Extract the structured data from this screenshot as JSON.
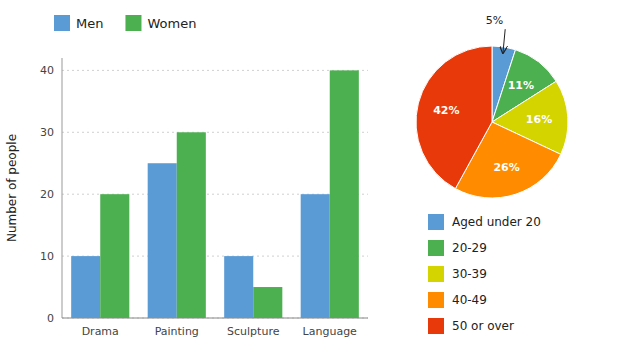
{
  "chart_data": [
    {
      "type": "bar",
      "categories": [
        "Drama",
        "Painting",
        "Sculpture",
        "Language"
      ],
      "series": [
        {
          "name": "Men",
          "color": "#5B9BD5",
          "values": [
            10,
            25,
            10,
            20
          ]
        },
        {
          "name": "Women",
          "color": "#4CAF50",
          "values": [
            20,
            30,
            5,
            40
          ]
        }
      ],
      "y_label": "Number of people",
      "ylim": [
        0,
        42
      ],
      "yticks": [
        0,
        10,
        20,
        30,
        40
      ],
      "grid": true,
      "legend": "top"
    },
    {
      "type": "pie",
      "categories": [
        "Aged under 20",
        "20-29",
        "30-39",
        "40-49",
        "50 or over"
      ],
      "values": [
        5,
        11,
        16,
        26,
        42
      ],
      "value_labels": [
        "5%",
        "11%",
        "16%",
        "26%",
        "42%"
      ],
      "colors": [
        "#5B9BD5",
        "#4CAF50",
        "#D4D400",
        "#FF8C00",
        "#E8390A"
      ],
      "data_labels": true,
      "legend": "bottom"
    }
  ]
}
